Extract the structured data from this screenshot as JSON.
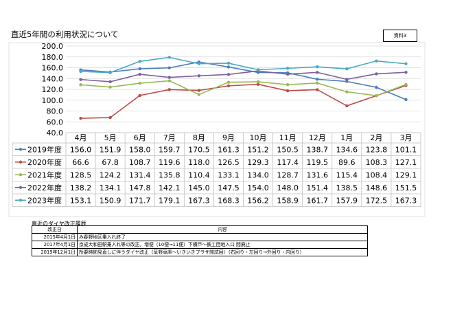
{
  "page": {
    "title": "直近5年間の利用状況について",
    "badge": "資料3"
  },
  "chart_data": {
    "type": "line",
    "title": "",
    "xlabel": "",
    "ylabel": "",
    "ylim": [
      40.0,
      200.0
    ],
    "yticks": [
      "40.0",
      "60.0",
      "80.0",
      "100.0",
      "120.0",
      "140.0",
      "160.0",
      "180.0",
      "200.0"
    ],
    "grid": true,
    "legend": "data-table",
    "categories": [
      "4月",
      "5月",
      "6月",
      "7月",
      "8月",
      "9月",
      "10月",
      "11月",
      "12月",
      "1月",
      "2月",
      "3月"
    ],
    "series": [
      {
        "name": "2019年度",
        "color": "#4a7ebb",
        "values": [
          156.0,
          151.9,
          158.0,
          159.7,
          170.5,
          161.3,
          151.2,
          150.5,
          138.7,
          134.6,
          123.8,
          101.1
        ],
        "labels": [
          "156.0",
          "151.9",
          "158.0",
          "159.7",
          "170.5",
          "161.3",
          "151.2",
          "150.5",
          "138.7",
          "134.6",
          "123.8",
          "101.1"
        ]
      },
      {
        "name": "2020年度",
        "color": "#be4b48",
        "values": [
          66.6,
          67.8,
          108.7,
          119.6,
          118.0,
          126.5,
          129.3,
          117.4,
          119.5,
          89.6,
          108.3,
          127.1
        ],
        "labels": [
          "66.6",
          "67.8",
          "108.7",
          "119.6",
          "118.0",
          "126.5",
          "129.3",
          "117.4",
          "119.5",
          "89.6",
          "108.3",
          "127.1"
        ]
      },
      {
        "name": "2021年度",
        "color": "#98b954",
        "values": [
          128.5,
          124.2,
          131.4,
          135.8,
          110.4,
          133.1,
          134.0,
          128.7,
          131.6,
          115.4,
          108.4,
          129.1
        ],
        "labels": [
          "128.5",
          "124.2",
          "131.4",
          "135.8",
          "110.4",
          "133.1",
          "134.0",
          "128.7",
          "131.6",
          "115.4",
          "108.4",
          "129.1"
        ]
      },
      {
        "name": "2022年度",
        "color": "#7d60a0",
        "values": [
          138.2,
          134.1,
          147.8,
          142.1,
          145.0,
          147.5,
          154.0,
          148.0,
          151.4,
          138.5,
          148.6,
          151.5
        ],
        "labels": [
          "138.2",
          "134.1",
          "147.8",
          "142.1",
          "145.0",
          "147.5",
          "154.0",
          "148.0",
          "151.4",
          "138.5",
          "148.6",
          "151.5"
        ]
      },
      {
        "name": "2023年度",
        "color": "#46aac5",
        "values": [
          153.1,
          150.9,
          171.7,
          179.1,
          167.3,
          168.3,
          156.2,
          158.9,
          161.7,
          157.9,
          172.5,
          167.3
        ],
        "labels": [
          "153.1",
          "150.9",
          "171.7",
          "179.1",
          "167.3",
          "168.3",
          "156.2",
          "158.9",
          "161.7",
          "157.9",
          "172.5",
          "167.3"
        ]
      }
    ]
  },
  "revisions": {
    "caption": "直近のダイヤ改正履歴",
    "headers": [
      "改正日",
      "内容"
    ],
    "rows": [
      {
        "date": "2015年4月1日",
        "content": "み春野地区乗入れ終了"
      },
      {
        "date": "2017年4月1日",
        "content": "京成大和田駅乗入れ等の改正。増便（10便→11便）下横戸～鉄工団地入口 間廃止"
      },
      {
        "date": "2019年12月1日",
        "content": "所要時間見直しに伴うダイヤ改正（草野車庫～いきいきプラザ間試回）（右回り・左回り→外回り・内回り）"
      }
    ]
  }
}
